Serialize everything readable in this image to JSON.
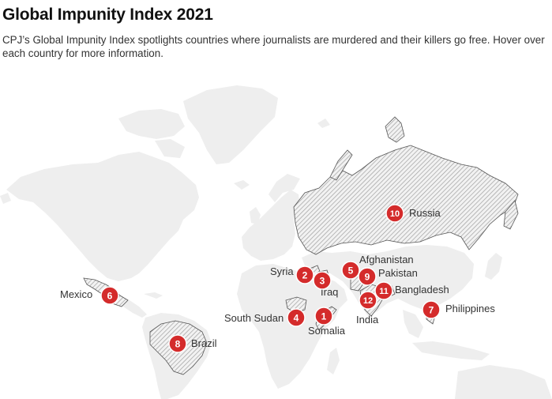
{
  "header": {
    "title": "Global Impunity Index 2021",
    "subtitle": "CPJ’s Global Impunity Index spotlights countries where journalists are murdered and their killers go free. Hover over each country for more information."
  },
  "colors": {
    "marker": "#d42b2b",
    "land": "#eeeeee",
    "highlight_hatch": "#999999"
  },
  "countries": [
    {
      "rank": "1",
      "name": "Somalia"
    },
    {
      "rank": "2",
      "name": "Syria"
    },
    {
      "rank": "3",
      "name": "Iraq"
    },
    {
      "rank": "4",
      "name": "South Sudan"
    },
    {
      "rank": "5",
      "name": "Afghanistan"
    },
    {
      "rank": "6",
      "name": "Mexico"
    },
    {
      "rank": "7",
      "name": "Philippines"
    },
    {
      "rank": "8",
      "name": "Brazil"
    },
    {
      "rank": "9",
      "name": "Pakistan"
    },
    {
      "rank": "10",
      "name": "Russia"
    },
    {
      "rank": "11",
      "name": "Bangladesh"
    },
    {
      "rank": "12",
      "name": "India"
    }
  ]
}
